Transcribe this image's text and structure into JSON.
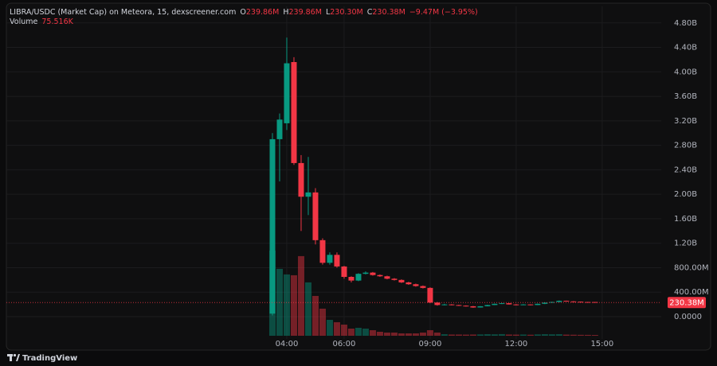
{
  "chart_data": {
    "type": "candlestick",
    "header": {
      "symbol": "LIBRA/USDC (Market Cap) on Meteora, 15, dexscreener.com",
      "o_label": "O",
      "open": "239.86M",
      "h_label": "H",
      "high": "239.86M",
      "l_label": "L",
      "low": "230.30M",
      "c_label": "C",
      "close": "230.38M",
      "change": "−9.47M (−3.95%)",
      "volume_label": "Volume",
      "volume": "75.516K"
    },
    "last_price_label": "230.38M",
    "up_color": "#089981",
    "down_color": "#f23645",
    "x": [
      3.5,
      3.75,
      4,
      4.25,
      4.5,
      4.75,
      5,
      5.25,
      5.5,
      5.75,
      6,
      6.25,
      6.5,
      6.75,
      7,
      7.25,
      7.5,
      7.75,
      8,
      8.25,
      8.5,
      8.75,
      9,
      9.25,
      9.5,
      9.75,
      10,
      10.25,
      10.5,
      10.75,
      11,
      11.25,
      11.5,
      11.75,
      12,
      12.25,
      12.5,
      12.75,
      13,
      13.25,
      13.5,
      13.75,
      14,
      14.25,
      14.5,
      14.75
    ],
    "open": [
      50000000,
      2900000000,
      3160000000,
      4160000000,
      2510000000,
      1960000000,
      2030000000,
      1250000000,
      880000000,
      1010000000,
      820000000,
      650000000,
      590000000,
      700000000,
      720000000,
      680000000,
      660000000,
      620000000,
      600000000,
      560000000,
      530000000,
      500000000,
      470000000,
      230000000,
      190000000,
      200000000,
      190000000,
      180000000,
      170000000,
      150000000,
      170000000,
      190000000,
      210000000,
      220000000,
      200000000,
      190000000,
      200000000,
      190000000,
      210000000,
      230000000,
      240000000,
      260000000,
      250000000,
      245000000,
      240000000,
      239860000
    ],
    "high": [
      3000000000,
      3320000000,
      4560000000,
      4240000000,
      2640000000,
      2610000000,
      2100000000,
      1280000000,
      1050000000,
      1050000000,
      830000000,
      660000000,
      710000000,
      740000000,
      730000000,
      690000000,
      670000000,
      630000000,
      610000000,
      570000000,
      540000000,
      510000000,
      480000000,
      240000000,
      210000000,
      205000000,
      195000000,
      185000000,
      175000000,
      172000000,
      195000000,
      215000000,
      225000000,
      222000000,
      205000000,
      205000000,
      202000000,
      215000000,
      235000000,
      245000000,
      265000000,
      262000000,
      255000000,
      248000000,
      242000000,
      239860000
    ],
    "low": [
      20000000,
      2210000000,
      3050000000,
      2480000000,
      1400000000,
      1660000000,
      1180000000,
      850000000,
      850000000,
      800000000,
      620000000,
      560000000,
      580000000,
      690000000,
      670000000,
      650000000,
      610000000,
      590000000,
      550000000,
      520000000,
      490000000,
      460000000,
      220000000,
      180000000,
      185000000,
      185000000,
      175000000,
      165000000,
      145000000,
      148000000,
      168000000,
      188000000,
      205000000,
      198000000,
      185000000,
      188000000,
      185000000,
      188000000,
      205000000,
      225000000,
      235000000,
      248000000,
      242000000,
      238000000,
      232000000,
      230300000
    ],
    "close": [
      2900000000,
      3220000000,
      4140000000,
      2510000000,
      1960000000,
      2030000000,
      1250000000,
      880000000,
      1010000000,
      820000000,
      650000000,
      590000000,
      700000000,
      720000000,
      680000000,
      660000000,
      620000000,
      600000000,
      560000000,
      530000000,
      500000000,
      470000000,
      230000000,
      190000000,
      200000000,
      190000000,
      180000000,
      170000000,
      150000000,
      170000000,
      190000000,
      210000000,
      220000000,
      200000000,
      190000000,
      200000000,
      190000000,
      210000000,
      230000000,
      240000000,
      260000000,
      250000000,
      245000000,
      240000000,
      235000000,
      230380000
    ],
    "volume": [
      8240000,
      6470000,
      5930000,
      5850000,
      7700000,
      5160000,
      3850000,
      2620000,
      1540000,
      1310000,
      1080000,
      690000,
      770000,
      690000,
      540000,
      385000,
      310000,
      310000,
      230000,
      230000,
      230000,
      310000,
      540000,
      310000,
      150000,
      120000,
      120000,
      110000,
      120000,
      130000,
      150000,
      140000,
      160000,
      120000,
      110000,
      120000,
      100000,
      130000,
      150000,
      140000,
      150000,
      110000,
      100000,
      90000,
      85000,
      75516
    ],
    "volume_lim": [
      0,
      10000000
    ],
    "xlim": [
      -5.78,
      17.06
    ],
    "xticks": [
      {
        "value": 4,
        "label": "04:00"
      },
      {
        "value": 6,
        "label": "06:00"
      },
      {
        "value": 9,
        "label": "09:00"
      },
      {
        "value": 12,
        "label": "12:00"
      },
      {
        "value": 15,
        "label": "15:00"
      }
    ],
    "ylim": [
      -546000000,
      5070000000
    ],
    "yticks": [
      {
        "value": 0,
        "label": "0.0000"
      },
      {
        "value": 400000000,
        "label": "400.00M"
      },
      {
        "value": 800000000,
        "label": "800.00M"
      },
      {
        "value": 1200000000,
        "label": "1.20B"
      },
      {
        "value": 1600000000,
        "label": "1.60B"
      },
      {
        "value": 2000000000,
        "label": "2.00B"
      },
      {
        "value": 2400000000,
        "label": "2.40B"
      },
      {
        "value": 2800000000,
        "label": "2.80B"
      },
      {
        "value": 3200000000,
        "label": "3.20B"
      },
      {
        "value": 3600000000,
        "label": "3.60B"
      },
      {
        "value": 4000000000,
        "label": "4.00B"
      },
      {
        "value": 4400000000,
        "label": "4.40B"
      },
      {
        "value": 4800000000,
        "label": "4.80B"
      }
    ],
    "grid": true
  },
  "footer": {
    "brand": "TradingView"
  }
}
